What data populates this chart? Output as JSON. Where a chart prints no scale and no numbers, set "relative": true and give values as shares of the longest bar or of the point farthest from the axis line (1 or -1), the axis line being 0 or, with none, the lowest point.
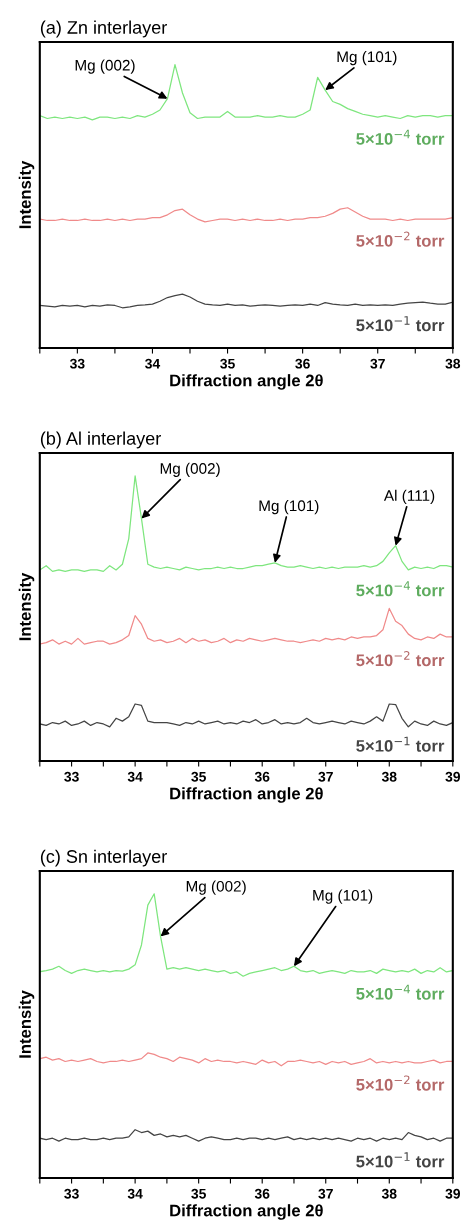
{
  "chart_data": [
    {
      "type": "line",
      "title": "(a) Zn interlayer",
      "xlabel": "Diffraction angle 2θ",
      "ylabel": "Intensity",
      "relative": true,
      "tick_labels": "x",
      "grid": false,
      "legend": false,
      "marker": "none",
      "line_style": "solid",
      "xlim": [
        32.5,
        38
      ],
      "xticks": [
        {
          "value": 32.5,
          "label": null
        },
        33,
        {
          "value": 33.5,
          "label": null
        },
        34,
        {
          "value": 34.5,
          "label": null
        },
        35,
        {
          "value": 35.5,
          "label": null
        },
        36,
        {
          "value": 36.5,
          "label": null
        },
        37,
        {
          "value": 37.5,
          "label": null
        },
        38
      ],
      "x": [
        32.5,
        32.6,
        32.7,
        32.8,
        32.9,
        33.0,
        33.1,
        33.2,
        33.3,
        33.4,
        33.5,
        33.6,
        33.7,
        33.8,
        33.9,
        34.0,
        34.1,
        34.2,
        34.3,
        34.4,
        34.5,
        34.6,
        34.7,
        34.8,
        34.9,
        35.0,
        35.1,
        35.2,
        35.3,
        35.4,
        35.5,
        35.6,
        35.7,
        35.8,
        35.9,
        36.0,
        36.1,
        36.2,
        36.3,
        36.4,
        36.5,
        36.6,
        36.7,
        36.8,
        36.9,
        37.0,
        37.1,
        37.2,
        37.3,
        37.4,
        37.5,
        37.6,
        37.7,
        37.8,
        37.9,
        38.0
      ],
      "series": [
        {
          "name": "5×10$^{−4}$ torr",
          "color": "#7ee67e",
          "values": [
            0.82,
            0.81,
            0.815,
            0.81,
            0.815,
            0.81,
            0.815,
            0.805,
            0.815,
            0.815,
            0.81,
            0.815,
            0.81,
            0.82,
            0.815,
            0.825,
            0.84,
            0.88,
            1.0,
            0.9,
            0.83,
            0.81,
            0.815,
            0.815,
            0.815,
            0.835,
            0.815,
            0.815,
            0.815,
            0.82,
            0.815,
            0.815,
            0.82,
            0.815,
            0.815,
            0.825,
            0.84,
            0.955,
            0.91,
            0.87,
            0.86,
            0.845,
            0.835,
            0.825,
            0.82,
            0.815,
            0.82,
            0.815,
            0.81,
            0.82,
            0.815,
            0.82,
            0.82,
            0.815,
            0.82,
            0.82
          ]
        },
        {
          "name": "5×10$^{−2}$ torr",
          "color": "#f08a8a",
          "values": [
            0.455,
            0.45,
            0.45,
            0.455,
            0.45,
            0.45,
            0.455,
            0.45,
            0.45,
            0.455,
            0.45,
            0.455,
            0.45,
            0.455,
            0.455,
            0.46,
            0.46,
            0.47,
            0.485,
            0.49,
            0.47,
            0.455,
            0.445,
            0.45,
            0.455,
            0.455,
            0.45,
            0.455,
            0.45,
            0.455,
            0.45,
            0.45,
            0.455,
            0.45,
            0.455,
            0.455,
            0.46,
            0.46,
            0.465,
            0.475,
            0.49,
            0.495,
            0.48,
            0.465,
            0.455,
            0.455,
            0.455,
            0.45,
            0.455,
            0.45,
            0.455,
            0.455,
            0.455,
            0.455,
            0.455,
            0.46
          ]
        },
        {
          "name": "5×10$^{−1}$ torr",
          "color": "#444444",
          "values": [
            0.15,
            0.148,
            0.145,
            0.15,
            0.148,
            0.15,
            0.145,
            0.15,
            0.148,
            0.152,
            0.15,
            0.142,
            0.145,
            0.15,
            0.152,
            0.155,
            0.165,
            0.178,
            0.185,
            0.19,
            0.18,
            0.165,
            0.155,
            0.152,
            0.15,
            0.155,
            0.15,
            0.152,
            0.148,
            0.15,
            0.152,
            0.15,
            0.148,
            0.15,
            0.152,
            0.15,
            0.155,
            0.15,
            0.16,
            0.155,
            0.152,
            0.15,
            0.155,
            0.15,
            0.152,
            0.15,
            0.152,
            0.15,
            0.155,
            0.158,
            0.16,
            0.162,
            0.158,
            0.155,
            0.155,
            0.162
          ]
        }
      ],
      "annotations": [
        {
          "text": "Mg (002)",
          "x": 34.2,
          "y": 0.88
        },
        {
          "text": "Mg (101)",
          "x": 36.3,
          "y": 0.91
        }
      ]
    },
    {
      "type": "line",
      "title": "(b) Al interlayer",
      "xlabel": "Diffraction angle 2θ",
      "ylabel": "Intensity",
      "relative": true,
      "tick_labels": "x",
      "grid": false,
      "legend": false,
      "marker": "none",
      "line_style": "solid",
      "xlim": [
        32.5,
        39
      ],
      "xticks": [
        {
          "value": 32.5,
          "label": null
        },
        33,
        {
          "value": 33.5,
          "label": null
        },
        34,
        {
          "value": 34.5,
          "label": null
        },
        35,
        {
          "value": 35.5,
          "label": null
        },
        36,
        {
          "value": 36.5,
          "label": null
        },
        37,
        {
          "value": 37.5,
          "label": null
        },
        38,
        {
          "value": 38.5,
          "label": null
        },
        39
      ],
      "x": [
        32.5,
        32.6,
        32.7,
        32.8,
        32.9,
        33.0,
        33.1,
        33.2,
        33.3,
        33.4,
        33.5,
        33.6,
        33.7,
        33.8,
        33.9,
        34.0,
        34.1,
        34.2,
        34.3,
        34.4,
        34.5,
        34.6,
        34.7,
        34.8,
        34.9,
        35.0,
        35.1,
        35.2,
        35.3,
        35.4,
        35.5,
        35.6,
        35.7,
        35.8,
        35.9,
        36.0,
        36.1,
        36.2,
        36.3,
        36.4,
        36.5,
        36.6,
        36.7,
        36.8,
        36.9,
        37.0,
        37.1,
        37.2,
        37.3,
        37.4,
        37.5,
        37.6,
        37.7,
        37.8,
        37.9,
        38.0,
        38.1,
        38.2,
        38.3,
        38.4,
        38.5,
        38.6,
        38.7,
        38.8,
        38.9,
        39.0
      ],
      "series": [
        {
          "name": "5×10$^{−4}$ torr",
          "color": "#7ee67e",
          "values": [
            0.67,
            0.685,
            0.665,
            0.67,
            0.665,
            0.67,
            0.67,
            0.665,
            0.67,
            0.67,
            0.665,
            0.685,
            0.67,
            0.69,
            0.78,
            1.0,
            0.85,
            0.69,
            0.68,
            0.675,
            0.68,
            0.675,
            0.67,
            0.68,
            0.675,
            0.67,
            0.675,
            0.675,
            0.68,
            0.675,
            0.68,
            0.675,
            0.675,
            0.68,
            0.685,
            0.685,
            0.69,
            0.695,
            0.685,
            0.68,
            0.68,
            0.685,
            0.68,
            0.675,
            0.68,
            0.675,
            0.68,
            0.675,
            0.68,
            0.68,
            0.68,
            0.685,
            0.68,
            0.685,
            0.7,
            0.73,
            0.755,
            0.7,
            0.67,
            0.68,
            0.675,
            0.68,
            0.675,
            0.685,
            0.685,
            0.68
          ]
        },
        {
          "name": "5×10$^{−2}$ torr",
          "color": "#f08a8a",
          "values": [
            0.41,
            0.415,
            0.425,
            0.41,
            0.42,
            0.41,
            0.43,
            0.41,
            0.415,
            0.42,
            0.42,
            0.41,
            0.415,
            0.425,
            0.44,
            0.51,
            0.48,
            0.43,
            0.42,
            0.425,
            0.415,
            0.42,
            0.43,
            0.415,
            0.43,
            0.42,
            0.425,
            0.415,
            0.42,
            0.43,
            0.415,
            0.425,
            0.42,
            0.43,
            0.425,
            0.42,
            0.425,
            0.43,
            0.425,
            0.42,
            0.42,
            0.415,
            0.42,
            0.425,
            0.42,
            0.43,
            0.425,
            0.43,
            0.425,
            0.435,
            0.43,
            0.435,
            0.435,
            0.44,
            0.46,
            0.535,
            0.49,
            0.475,
            0.445,
            0.43,
            0.425,
            0.435,
            0.43,
            0.445,
            0.435,
            0.435
          ]
        },
        {
          "name": "5×10$^{−1}$ torr",
          "color": "#444444",
          "values": [
            0.13,
            0.125,
            0.135,
            0.13,
            0.14,
            0.125,
            0.13,
            0.14,
            0.125,
            0.135,
            0.13,
            0.12,
            0.15,
            0.14,
            0.155,
            0.2,
            0.195,
            0.14,
            0.135,
            0.135,
            0.135,
            0.13,
            0.125,
            0.135,
            0.13,
            0.14,
            0.13,
            0.135,
            0.14,
            0.13,
            0.135,
            0.13,
            0.14,
            0.135,
            0.145,
            0.13,
            0.135,
            0.145,
            0.13,
            0.135,
            0.13,
            0.135,
            0.15,
            0.135,
            0.13,
            0.135,
            0.14,
            0.135,
            0.13,
            0.14,
            0.135,
            0.13,
            0.14,
            0.155,
            0.14,
            0.2,
            0.198,
            0.15,
            0.12,
            0.14,
            0.13,
            0.125,
            0.14,
            0.13,
            0.125,
            0.135
          ]
        }
      ],
      "annotations": [
        {
          "text": "Mg (002)",
          "x": 34.1,
          "y": 0.85
        },
        {
          "text": "Mg (101)",
          "x": 36.2,
          "y": 0.695
        },
        {
          "text": "Al (111)",
          "x": 38.1,
          "y": 0.755
        }
      ]
    },
    {
      "type": "line",
      "title": "(c) Sn interlayer",
      "xlabel": "Diffraction angle 2θ",
      "ylabel": "Intensity",
      "relative": true,
      "tick_labels": "x",
      "grid": false,
      "legend": false,
      "marker": "none",
      "line_style": "solid",
      "xlim": [
        32.5,
        39
      ],
      "xticks": [
        {
          "value": 32.5,
          "label": null
        },
        33,
        {
          "value": 33.5,
          "label": null
        },
        34,
        {
          "value": 34.5,
          "label": null
        },
        35,
        {
          "value": 35.5,
          "label": null
        },
        36,
        {
          "value": 36.5,
          "label": null
        },
        37,
        {
          "value": 37.5,
          "label": null
        },
        38,
        {
          "value": 38.5,
          "label": null
        },
        39
      ],
      "x": [
        32.5,
        32.6,
        32.7,
        32.8,
        32.9,
        33.0,
        33.1,
        33.2,
        33.3,
        33.4,
        33.5,
        33.6,
        33.7,
        33.8,
        33.9,
        34.0,
        34.1,
        34.2,
        34.3,
        34.4,
        34.5,
        34.6,
        34.7,
        34.8,
        34.9,
        35.0,
        35.1,
        35.2,
        35.3,
        35.4,
        35.5,
        35.6,
        35.7,
        35.8,
        35.9,
        36.0,
        36.1,
        36.2,
        36.3,
        36.4,
        36.5,
        36.6,
        36.7,
        36.8,
        36.9,
        37.0,
        37.1,
        37.2,
        37.3,
        37.4,
        37.5,
        37.6,
        37.7,
        37.8,
        37.9,
        38.0,
        38.1,
        38.2,
        38.3,
        38.4,
        38.5,
        38.6,
        38.7,
        38.8,
        38.9,
        39.0
      ],
      "series": [
        {
          "name": "5×10$^{−4}$ torr",
          "color": "#7ee67e",
          "values": [
            0.726,
            0.73,
            0.735,
            0.745,
            0.73,
            0.72,
            0.73,
            0.735,
            0.73,
            0.725,
            0.73,
            0.725,
            0.73,
            0.728,
            0.735,
            0.75,
            0.82,
            0.96,
            1.0,
            0.85,
            0.735,
            0.74,
            0.735,
            0.74,
            0.735,
            0.73,
            0.735,
            0.73,
            0.725,
            0.73,
            0.72,
            0.725,
            0.71,
            0.72,
            0.725,
            0.73,
            0.735,
            0.74,
            0.73,
            0.735,
            0.745,
            0.73,
            0.725,
            0.73,
            0.72,
            0.725,
            0.73,
            0.725,
            0.72,
            0.73,
            0.725,
            0.725,
            0.73,
            0.72,
            0.735,
            0.73,
            0.725,
            0.73,
            0.725,
            0.735,
            0.72,
            0.73,
            0.725,
            0.74,
            0.725,
            0.73
          ]
        },
        {
          "name": "5×10$^{−2}$ torr",
          "color": "#f08a8a",
          "values": [
            0.42,
            0.425,
            0.415,
            0.42,
            0.41,
            0.415,
            0.41,
            0.415,
            0.42,
            0.41,
            0.405,
            0.41,
            0.41,
            0.415,
            0.41,
            0.415,
            0.42,
            0.44,
            0.435,
            0.425,
            0.42,
            0.41,
            0.425,
            0.42,
            0.415,
            0.405,
            0.42,
            0.41,
            0.415,
            0.41,
            0.41,
            0.405,
            0.41,
            0.405,
            0.4,
            0.415,
            0.405,
            0.41,
            0.395,
            0.41,
            0.41,
            0.415,
            0.41,
            0.405,
            0.41,
            0.4,
            0.41,
            0.405,
            0.41,
            0.4,
            0.405,
            0.41,
            0.42,
            0.405,
            0.41,
            0.405,
            0.41,
            0.405,
            0.41,
            0.405,
            0.405,
            0.41,
            0.415,
            0.405,
            0.41,
            0.41
          ]
        },
        {
          "name": "5×10$^{−1}$ torr",
          "color": "#444444",
          "values": [
            0.14,
            0.135,
            0.14,
            0.13,
            0.14,
            0.135,
            0.135,
            0.14,
            0.135,
            0.135,
            0.14,
            0.135,
            0.14,
            0.14,
            0.145,
            0.17,
            0.16,
            0.165,
            0.15,
            0.155,
            0.145,
            0.15,
            0.145,
            0.15,
            0.14,
            0.13,
            0.14,
            0.145,
            0.14,
            0.135,
            0.135,
            0.14,
            0.135,
            0.14,
            0.14,
            0.135,
            0.14,
            0.135,
            0.14,
            0.145,
            0.135,
            0.14,
            0.135,
            0.14,
            0.135,
            0.14,
            0.135,
            0.14,
            0.135,
            0.13,
            0.14,
            0.135,
            0.14,
            0.13,
            0.14,
            0.135,
            0.14,
            0.135,
            0.16,
            0.15,
            0.145,
            0.135,
            0.14,
            0.13,
            0.14,
            0.14
          ]
        }
      ],
      "annotations": [
        {
          "text": "Mg (002)",
          "x": 34.4,
          "y": 0.85
        },
        {
          "text": "Mg (101)",
          "x": 36.5,
          "y": 0.745
        }
      ]
    }
  ]
}
